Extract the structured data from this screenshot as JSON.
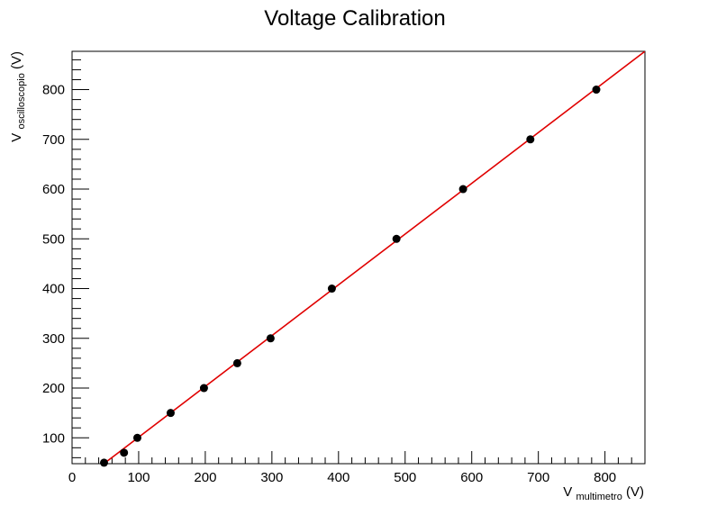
{
  "chart_data": {
    "type": "scatter",
    "title": "Voltage Calibration",
    "xlabel": {
      "main": "V",
      "sub": "multimetro",
      "unit": " (V)"
    },
    "ylabel": {
      "main": "V",
      "sub": "oscilloscopio",
      "unit": " (V)"
    },
    "xlim": [
      0,
      860
    ],
    "ylim": [
      48,
      877
    ],
    "xticks": [
      0,
      100,
      200,
      300,
      400,
      500,
      600,
      700,
      800
    ],
    "yticks": [
      100,
      200,
      300,
      400,
      500,
      600,
      700,
      800
    ],
    "xticklabels": [
      "0",
      "100",
      "200",
      "300",
      "400",
      "500",
      "600",
      "700",
      "800"
    ],
    "yticklabels": [
      "100",
      "200",
      "300",
      "400",
      "500",
      "600",
      "700",
      "800"
    ],
    "grid": false,
    "legend": "none",
    "series": [
      {
        "x": [
          48,
          78,
          98,
          148,
          198,
          248,
          298,
          390,
          487,
          587,
          688,
          787
        ],
        "y": [
          50,
          70,
          100,
          150,
          200,
          250,
          300,
          400,
          500,
          600,
          700,
          800
        ],
        "color": "#000000"
      }
    ],
    "fit_line": {
      "x": [
        35,
        860
      ],
      "y": [
        35,
        877
      ],
      "color": "#e00000"
    }
  }
}
